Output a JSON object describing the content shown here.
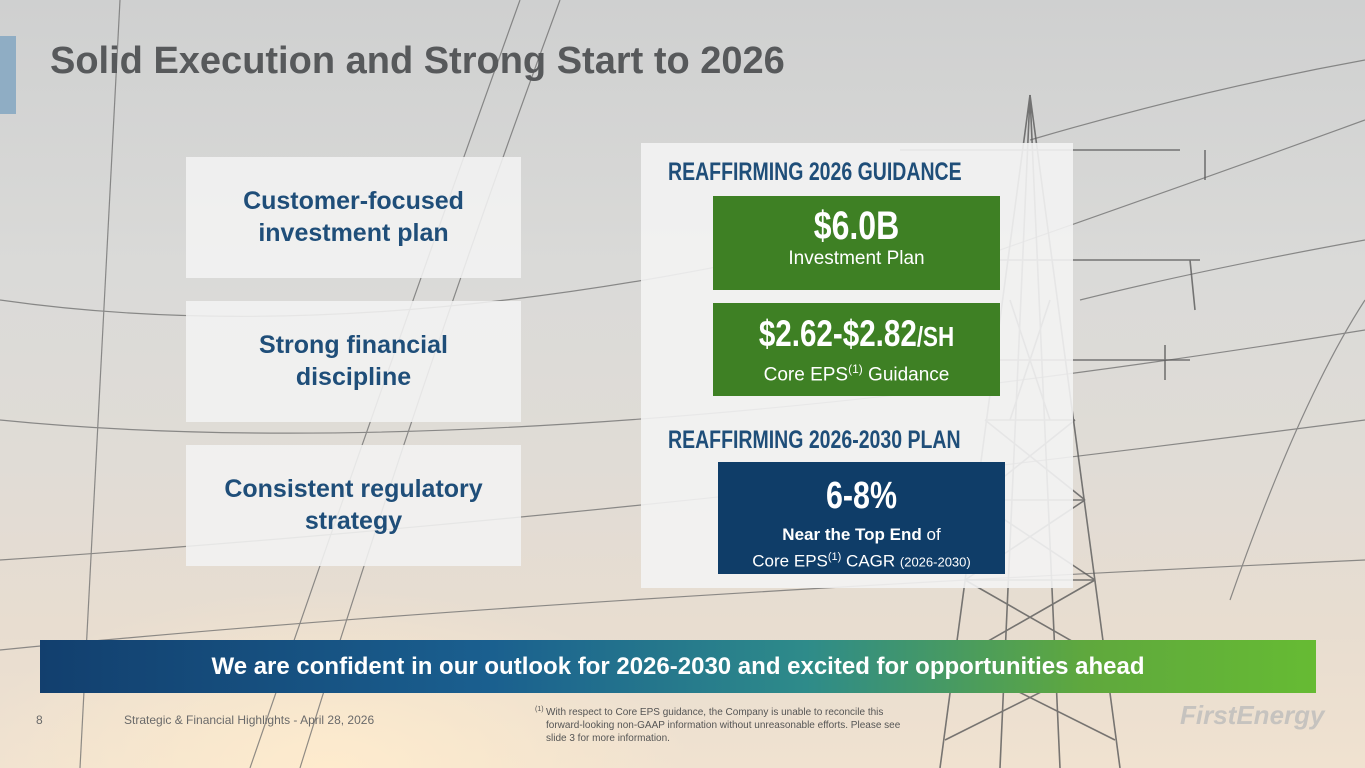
{
  "title": "Solid Execution and Strong Start to 2026",
  "pillars": [
    {
      "label": "Customer-focused investment plan"
    },
    {
      "label": "Strong financial discipline"
    },
    {
      "label": "Consistent regulatory strategy"
    }
  ],
  "guidance": {
    "heading": "REAFFIRMING 2026 GUIDANCE",
    "investment": {
      "value": "$6.0B",
      "label": "Investment Plan",
      "color": "#3e8024"
    },
    "eps": {
      "value": "$2.62-$2.82",
      "unit": "/SH",
      "label_pre": "Core EPS",
      "sup": "(1)",
      "label_post": " Guidance",
      "color": "#3e8024"
    }
  },
  "plan": {
    "heading": "REAFFIRMING 2026-2030 PLAN",
    "value": "6-8%",
    "line1_bold": "Near the Top End",
    "line1_rest": " of",
    "line2_pre": "Core EPS",
    "line2_sup": "(1)",
    "line2_mid": " CAGR ",
    "line2_small": "(2026-2030)",
    "color": "#0f3d68"
  },
  "banner": "We are confident in our outlook for 2026-2030 and excited for opportunities ahead",
  "footer": {
    "page_number": "8",
    "doc_title": "Strategic & Financial Highlights - April 28, 2026",
    "footnote_marker": "(1)",
    "footnote": "With respect to Core EPS guidance, the Company is unable to reconcile this forward-looking non-GAAP information without unreasonable efforts. Please see slide 3 for more information."
  },
  "logo": "FirstEnergy"
}
